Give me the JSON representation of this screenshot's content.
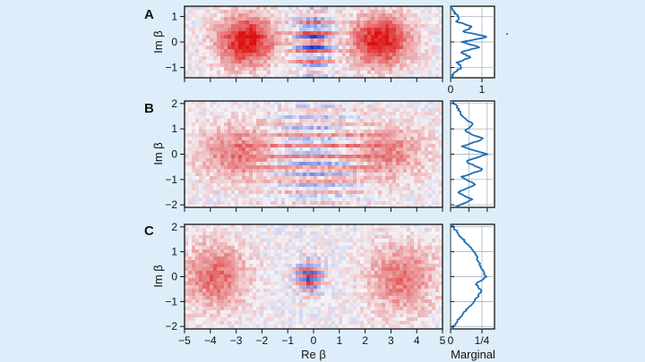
{
  "background_color": "#ddeefa",
  "chart_data": [
    {
      "panel": "A",
      "type": "heatmap",
      "xlabel": "Re β",
      "ylabel": "Im β",
      "xlim": [
        -5,
        5
      ],
      "ylim": [
        -1.4,
        1.4
      ],
      "yticks": [
        -1,
        0,
        1
      ],
      "features": [
        {
          "kind": "gaussian",
          "x": -2.6,
          "y": 0.05,
          "sx": 0.8,
          "sy": 0.7,
          "amp": 1.0
        },
        {
          "kind": "gaussian",
          "x": 2.6,
          "y": 0.05,
          "sx": 0.8,
          "sy": 0.7,
          "amp": 1.0
        },
        {
          "kind": "fringes",
          "x": 0.0,
          "y": 0.0,
          "sx": 0.55,
          "sy": 0.8,
          "period": 0.38,
          "amp": 0.95
        }
      ],
      "marginal": {
        "xlim": [
          0,
          1.4
        ],
        "xticks": [
          0,
          1
        ],
        "xtick_labels": [
          "0",
          "1"
        ],
        "y": [
          -1.4,
          -1.2,
          -1.0,
          -0.8,
          -0.6,
          -0.4,
          -0.2,
          0.0,
          0.2,
          0.4,
          0.6,
          0.8,
          1.0,
          1.2,
          1.4
        ],
        "values": [
          0.02,
          0.1,
          0.35,
          0.2,
          0.65,
          0.3,
          0.95,
          0.35,
          1.2,
          0.4,
          0.7,
          0.2,
          0.25,
          0.08,
          0.02
        ]
      }
    },
    {
      "panel": "B",
      "type": "heatmap",
      "xlabel": "Re β",
      "ylabel": "Im β",
      "xlim": [
        -5,
        5
      ],
      "ylim": [
        -2.1,
        2.1
      ],
      "yticks": [
        -2,
        -1,
        0,
        1,
        2
      ],
      "features": [
        {
          "kind": "gaussian",
          "x": -2.9,
          "y": 0.1,
          "sx": 1.1,
          "sy": 0.75,
          "amp": 0.55
        },
        {
          "kind": "gaussian",
          "x": 2.8,
          "y": 0.1,
          "sx": 1.1,
          "sy": 0.75,
          "amp": 0.5
        },
        {
          "kind": "fringes",
          "x": 0.1,
          "y": -0.1,
          "sx": 1.4,
          "sy": 1.4,
          "period": 0.45,
          "amp": 0.5
        }
      ],
      "marginal": {
        "xlim": [
          0,
          0.6
        ],
        "xticks": [
          0,
          0.25,
          0.5
        ],
        "xtick_labels": [
          "",
          "",
          ""
        ],
        "y": [
          -2.1,
          -1.8,
          -1.5,
          -1.2,
          -0.9,
          -0.6,
          -0.3,
          0.0,
          0.3,
          0.6,
          0.9,
          1.2,
          1.5,
          1.8,
          2.1
        ],
        "values": [
          0.05,
          0.3,
          0.08,
          0.35,
          0.15,
          0.45,
          0.2,
          0.5,
          0.15,
          0.45,
          0.2,
          0.3,
          0.15,
          0.1,
          0.03
        ]
      }
    },
    {
      "panel": "C",
      "type": "heatmap",
      "xlabel": "Re β",
      "ylabel": "Im β",
      "xlim": [
        -5,
        5
      ],
      "ylim": [
        -2.1,
        2.1
      ],
      "xticks": [
        -5,
        -4,
        -3,
        -2,
        -1,
        0,
        1,
        2,
        3,
        4,
        5
      ],
      "yticks": [
        -2,
        -1,
        0,
        1,
        2
      ],
      "features": [
        {
          "kind": "gaussian",
          "x": -3.8,
          "y": 0.1,
          "sx": 0.85,
          "sy": 0.9,
          "amp": 0.6
        },
        {
          "kind": "gaussian",
          "x": 3.4,
          "y": 0.0,
          "sx": 0.9,
          "sy": 0.95,
          "amp": 0.55
        },
        {
          "kind": "fringes",
          "x": -0.15,
          "y": 0.05,
          "sx": 0.35,
          "sy": 0.45,
          "period": 0.28,
          "amp": 0.9
        }
      ],
      "marginal": {
        "xlim": [
          0,
          0.35
        ],
        "xticks": [
          0,
          0.25
        ],
        "xtick_labels": [
          "0",
          "1/4"
        ],
        "xlabel": "Marginal",
        "y": [
          -2.1,
          -1.8,
          -1.5,
          -1.2,
          -0.9,
          -0.6,
          -0.3,
          0.0,
          0.3,
          0.6,
          0.9,
          1.2,
          1.5,
          1.8,
          2.1
        ],
        "values": [
          0.01,
          0.05,
          0.1,
          0.15,
          0.2,
          0.25,
          0.2,
          0.28,
          0.25,
          0.22,
          0.2,
          0.15,
          0.1,
          0.05,
          0.01
        ]
      }
    }
  ],
  "colormap": {
    "positive": "#dd1111",
    "zero": "#f4f4f8",
    "negative": "#1133cc",
    "marginal_line": "#1f6fb4"
  }
}
